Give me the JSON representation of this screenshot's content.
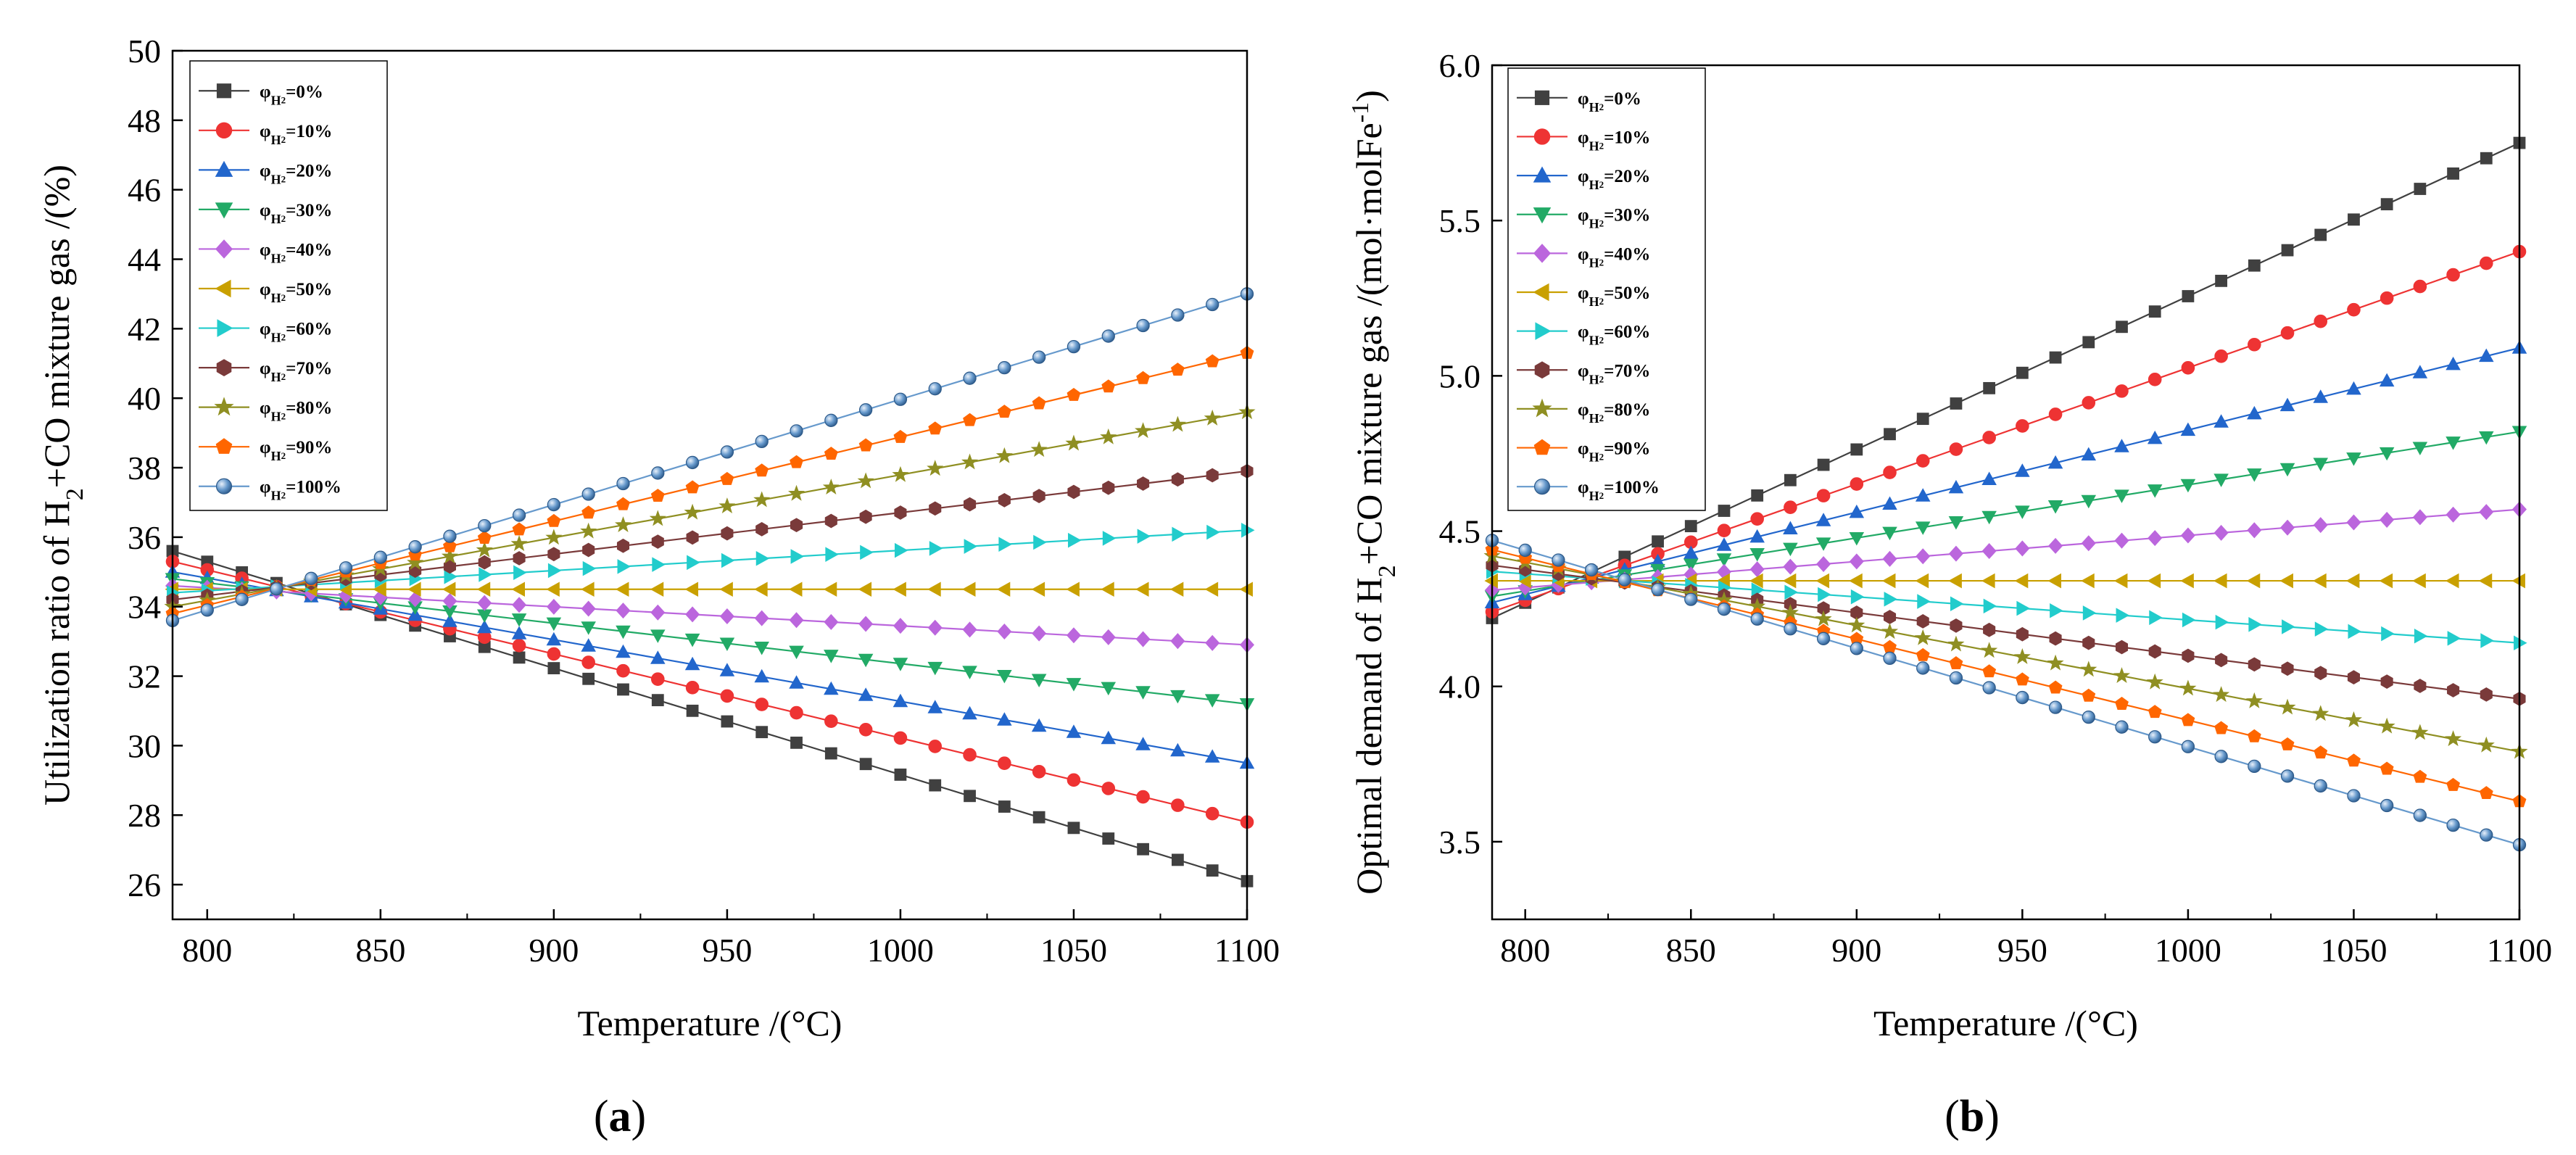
{
  "chart_data": [
    {
      "type": "line",
      "panel": "a",
      "panel_label": {
        "open": "(",
        "letter": "a",
        "close": ")"
      },
      "xlabel": "Temperature /(°C)",
      "ylabel": {
        "pre": "Utilization ratio of H",
        "sub": "2",
        "post": "+CO mixture gas /(%)"
      },
      "xlim": [
        790,
        1100
      ],
      "ylim": [
        25,
        50
      ],
      "xticks": [
        800,
        850,
        900,
        950,
        1000,
        1050,
        1100
      ],
      "yticks": [
        26,
        28,
        30,
        32,
        34,
        36,
        38,
        40,
        42,
        44,
        46,
        48,
        50
      ],
      "x": [
        790,
        800,
        810,
        820,
        830,
        840,
        850,
        860,
        870,
        880,
        890,
        900,
        910,
        920,
        930,
        940,
        950,
        960,
        970,
        980,
        990,
        1000,
        1010,
        1020,
        1030,
        1040,
        1050,
        1060,
        1070,
        1080,
        1090,
        1100
      ],
      "legend_position": "top-left",
      "series": [
        {
          "name": "0%",
          "start": 35.6,
          "end": 26.1
        },
        {
          "name": "10%",
          "start": 35.3,
          "end": 27.8
        },
        {
          "name": "20%",
          "start": 35.0,
          "end": 29.5
        },
        {
          "name": "30%",
          "start": 34.8,
          "end": 31.2
        },
        {
          "name": "40%",
          "start": 34.6,
          "end": 32.9
        },
        {
          "name": "50%",
          "start": 34.5,
          "end": 34.5
        },
        {
          "name": "60%",
          "start": 34.4,
          "end": 36.2
        },
        {
          "name": "70%",
          "start": 34.2,
          "end": 37.9
        },
        {
          "name": "80%",
          "start": 34.0,
          "end": 39.6
        },
        {
          "name": "90%",
          "start": 33.8,
          "end": 41.3
        },
        {
          "name": "100%",
          "start": 33.6,
          "end": 43.0
        }
      ]
    },
    {
      "type": "line",
      "panel": "b",
      "panel_label": {
        "open": "(",
        "letter": "b",
        "close": ")"
      },
      "xlabel": "Temperature /(°C)",
      "ylabel": {
        "pre": "Optimal demand of H",
        "sub": "2",
        "post": "+CO mixture gas /(mol·molFe",
        "sup": "-1",
        "end": ")"
      },
      "xlim": [
        790,
        1100
      ],
      "ylim": [
        3.25,
        6.0
      ],
      "xticks": [
        800,
        850,
        900,
        950,
        1000,
        1050,
        1100
      ],
      "yticks": [
        3.5,
        4.0,
        4.5,
        5.0,
        5.5,
        6.0
      ],
      "ytick_labels": [
        "3.5",
        "4.0",
        "4.5",
        "5.0",
        "5.5",
        "6.0"
      ],
      "x": [
        790,
        800,
        810,
        820,
        830,
        840,
        850,
        860,
        870,
        880,
        890,
        900,
        910,
        920,
        930,
        940,
        950,
        960,
        970,
        980,
        990,
        1000,
        1010,
        1020,
        1030,
        1040,
        1050,
        1060,
        1070,
        1080,
        1090,
        1100
      ],
      "legend_position": "top-left",
      "series": [
        {
          "name": "0%",
          "start": 4.22,
          "end": 5.75
        },
        {
          "name": "10%",
          "start": 4.24,
          "end": 5.4
        },
        {
          "name": "20%",
          "start": 4.27,
          "end": 5.09
        },
        {
          "name": "30%",
          "start": 4.29,
          "end": 4.82
        },
        {
          "name": "40%",
          "start": 4.31,
          "end": 4.57
        },
        {
          "name": "50%",
          "start": 4.34,
          "end": 4.34
        },
        {
          "name": "60%",
          "start": 4.37,
          "end": 4.14
        },
        {
          "name": "70%",
          "start": 4.39,
          "end": 3.96
        },
        {
          "name": "80%",
          "start": 4.42,
          "end": 3.79
        },
        {
          "name": "90%",
          "start": 4.44,
          "end": 3.63
        },
        {
          "name": "100%",
          "start": 4.47,
          "end": 3.49
        }
      ]
    }
  ],
  "legend_prefix": {
    "symbol": "φ",
    "sub": "H",
    "subsub": "2",
    "eq": "="
  },
  "series_styles": [
    {
      "color": "#404040",
      "marker": "square"
    },
    {
      "color": "#ee3333",
      "marker": "circle"
    },
    {
      "color": "#2266cc",
      "marker": "triangle-up"
    },
    {
      "color": "#22aa66",
      "marker": "triangle-down"
    },
    {
      "color": "#bb66dd",
      "marker": "diamond"
    },
    {
      "color": "#c9a000",
      "marker": "triangle-left"
    },
    {
      "color": "#22cccc",
      "marker": "triangle-right"
    },
    {
      "color": "#7a3a3a",
      "marker": "hexagon"
    },
    {
      "color": "#8f8f22",
      "marker": "star"
    },
    {
      "color": "#ff6600",
      "marker": "pentagon"
    },
    {
      "color": "#6699cc",
      "marker": "sphere"
    }
  ]
}
